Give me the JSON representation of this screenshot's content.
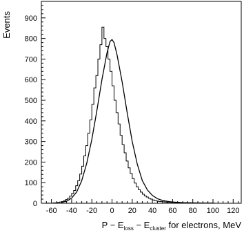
{
  "chart_data": {
    "type": "line",
    "xlabel": {
      "p1": "P − E",
      "s1": "loss",
      "p2": " − E",
      "s2": "cluster",
      "p3": " for electrons, MeV"
    },
    "ylabel": "Events",
    "xlim": [
      -70,
      128
    ],
    "ylim": [
      0,
      980
    ],
    "x_ticks": [
      -60,
      -40,
      -20,
      0,
      20,
      40,
      60,
      80,
      100,
      120
    ],
    "y_ticks": [
      0,
      100,
      200,
      300,
      400,
      500,
      600,
      700,
      800,
      900
    ],
    "grid": false,
    "series": [
      {
        "kind": "histogram",
        "bin_width": 2,
        "bin_start": -70,
        "values": [
          0,
          0,
          0,
          1,
          0,
          1,
          2,
          2,
          4,
          6,
          8,
          12,
          18,
          25,
          35,
          48,
          62,
          85,
          110,
          142,
          180,
          230,
          280,
          340,
          405,
          480,
          560,
          620,
          700,
          770,
          855,
          800,
          760,
          700,
          640,
          570,
          500,
          440,
          385,
          330,
          285,
          245,
          205,
          172,
          145,
          120,
          98,
          80,
          66,
          54,
          44,
          36,
          30,
          24,
          20,
          16,
          13,
          11,
          9,
          8,
          7,
          6,
          5,
          5,
          4,
          4,
          3,
          3,
          3,
          2,
          2,
          2,
          2,
          2,
          1,
          1,
          1,
          1,
          1,
          1,
          1,
          1,
          1,
          1,
          1,
          1,
          0,
          0,
          0,
          0,
          0,
          0,
          0,
          0,
          0,
          0,
          0,
          0,
          0
        ]
      },
      {
        "kind": "fit",
        "x": [
          -50,
          -45,
          -40,
          -35,
          -30,
          -25,
          -20,
          -15,
          -10,
          -5,
          -2,
          0,
          2,
          5,
          10,
          15,
          20,
          25,
          30,
          35,
          40,
          45,
          50,
          55,
          60,
          70,
          80,
          90,
          100
        ],
        "values": [
          4,
          10,
          25,
          55,
          110,
          195,
          310,
          450,
          600,
          730,
          785,
          795,
          780,
          720,
          590,
          440,
          300,
          190,
          110,
          65,
          38,
          22,
          14,
          9,
          6,
          3,
          2,
          1,
          1
        ]
      }
    ]
  }
}
